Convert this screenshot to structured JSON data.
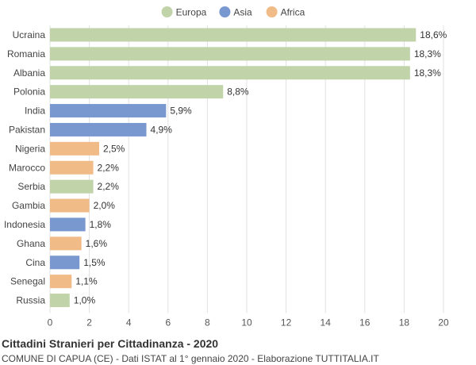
{
  "chart_data": {
    "type": "bar",
    "orientation": "horizontal",
    "title": "Cittadini Stranieri per Cittadinanza - 2020",
    "subtitle": "COMUNE DI CAPUA (CE) - Dati ISTAT al 1° gennaio 2020 - Elaborazione TUTTITALIA.IT",
    "legend": {
      "position": "top-center",
      "items": [
        {
          "name": "Europa",
          "color": "#c1d3a9"
        },
        {
          "name": "Asia",
          "color": "#7a98d0"
        },
        {
          "name": "Africa",
          "color": "#f1bb87"
        }
      ]
    },
    "xlim": [
      0,
      20
    ],
    "xticks": [
      0,
      2,
      4,
      6,
      8,
      10,
      12,
      14,
      16,
      18,
      20
    ],
    "grid": true,
    "bars": [
      {
        "category": "Ucraina",
        "value": 18.6,
        "label": "18,6%",
        "group": "Europa"
      },
      {
        "category": "Romania",
        "value": 18.3,
        "label": "18,3%",
        "group": "Europa"
      },
      {
        "category": "Albania",
        "value": 18.3,
        "label": "18,3%",
        "group": "Europa"
      },
      {
        "category": "Polonia",
        "value": 8.8,
        "label": "8,8%",
        "group": "Europa"
      },
      {
        "category": "India",
        "value": 5.9,
        "label": "5,9%",
        "group": "Asia"
      },
      {
        "category": "Pakistan",
        "value": 4.9,
        "label": "4,9%",
        "group": "Asia"
      },
      {
        "category": "Nigeria",
        "value": 2.5,
        "label": "2,5%",
        "group": "Africa"
      },
      {
        "category": "Marocco",
        "value": 2.2,
        "label": "2,2%",
        "group": "Africa"
      },
      {
        "category": "Serbia",
        "value": 2.2,
        "label": "2,2%",
        "group": "Europa"
      },
      {
        "category": "Gambia",
        "value": 2.0,
        "label": "2,0%",
        "group": "Africa"
      },
      {
        "category": "Indonesia",
        "value": 1.8,
        "label": "1,8%",
        "group": "Asia"
      },
      {
        "category": "Ghana",
        "value": 1.6,
        "label": "1,6%",
        "group": "Africa"
      },
      {
        "category": "Cina",
        "value": 1.5,
        "label": "1,5%",
        "group": "Asia"
      },
      {
        "category": "Senegal",
        "value": 1.1,
        "label": "1,1%",
        "group": "Africa"
      },
      {
        "category": "Russia",
        "value": 1.0,
        "label": "1,0%",
        "group": "Europa"
      }
    ]
  }
}
